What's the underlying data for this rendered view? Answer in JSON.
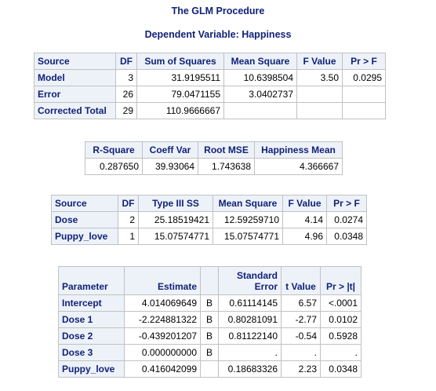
{
  "procedure_title": "The GLM Procedure",
  "dependent_title": "Dependent Variable: Happiness",
  "anova": {
    "headers": [
      "Source",
      "DF",
      "Sum of Squares",
      "Mean Square",
      "F Value",
      "Pr > F"
    ],
    "rows": [
      {
        "source": "Model",
        "df": "3",
        "ss": "31.9195511",
        "ms": "10.6398504",
        "f": "3.50",
        "p": "0.0295"
      },
      {
        "source": "Error",
        "df": "26",
        "ss": "79.0471155",
        "ms": "3.0402737",
        "f": "",
        "p": ""
      },
      {
        "source": "Corrected Total",
        "df": "29",
        "ss": "110.9666667",
        "ms": "",
        "f": "",
        "p": ""
      }
    ]
  },
  "fit": {
    "headers": [
      "R-Square",
      "Coeff Var",
      "Root MSE",
      "Happiness Mean"
    ],
    "values": [
      "0.287650",
      "39.93064",
      "1.743638",
      "4.366667"
    ]
  },
  "type3": {
    "headers": [
      "Source",
      "DF",
      "Type III SS",
      "Mean Square",
      "F Value",
      "Pr > F"
    ],
    "rows": [
      {
        "source": "Dose",
        "df": "2",
        "ss": "25.18519421",
        "ms": "12.59259710",
        "f": "4.14",
        "p": "0.0274"
      },
      {
        "source": "Puppy_love",
        "df": "1",
        "ss": "15.07574771",
        "ms": "15.07574771",
        "f": "4.96",
        "p": "0.0348"
      }
    ]
  },
  "estimates": {
    "headers": {
      "parameter": "Parameter",
      "estimate": "Estimate",
      "flag": "",
      "stderr_line1": "Standard",
      "stderr_line2": "Error",
      "t": "t Value",
      "p": "Pr > |t|"
    },
    "rows": [
      {
        "parameter": "Intercept",
        "estimate": "4.014069649",
        "flag": "B",
        "stderr": "0.61114145",
        "t": "6.57",
        "p": "<.0001"
      },
      {
        "parameter": "Dose 1",
        "estimate": "-2.224881322",
        "flag": "B",
        "stderr": "0.80281091",
        "t": "-2.77",
        "p": "0.0102"
      },
      {
        "parameter": "Dose 2",
        "estimate": "-0.439201207",
        "flag": "B",
        "stderr": "0.81122140",
        "t": "-0.54",
        "p": "0.5928"
      },
      {
        "parameter": "Dose 3",
        "estimate": "0.000000000",
        "flag": "B",
        "stderr": ".",
        "t": ".",
        "p": "."
      },
      {
        "parameter": "Puppy_love",
        "estimate": "0.416042099",
        "flag": "",
        "stderr": "0.18683326",
        "t": "2.23",
        "p": "0.0348"
      }
    ]
  },
  "colors": {
    "header_background": "#edf2f9",
    "header_text": "#112277",
    "grid_border": "#c1c1c1"
  }
}
